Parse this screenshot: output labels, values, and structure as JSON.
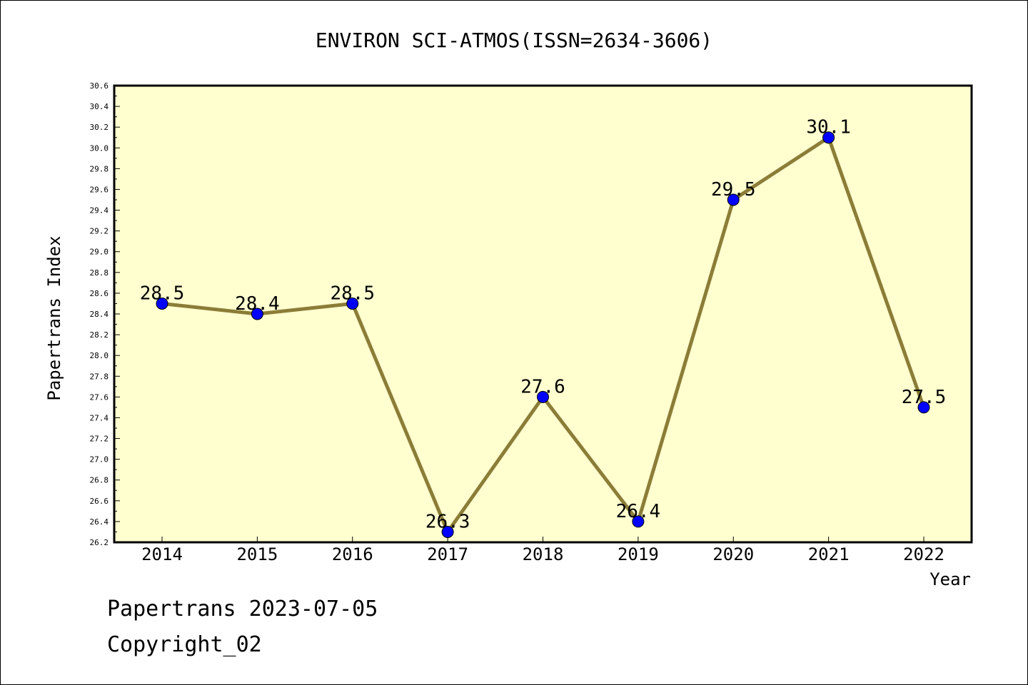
{
  "chart_data": {
    "type": "line",
    "title": "ENVIRON SCI-ATMOS(ISSN=2634-3606)",
    "xlabel": "Year",
    "ylabel": "Papertrans Index",
    "categories": [
      "2014",
      "2015",
      "2016",
      "2017",
      "2018",
      "2019",
      "2020",
      "2021",
      "2022"
    ],
    "values": [
      28.5,
      28.4,
      28.5,
      26.3,
      27.6,
      26.4,
      29.5,
      30.1,
      27.5
    ],
    "data_labels": [
      "28.5",
      "28.4",
      "28.5",
      "26.3",
      "27.6",
      "26.4",
      "29.5",
      "30.1",
      "27.5"
    ],
    "ylim": [
      26.2,
      30.6
    ],
    "yticks": [
      "26.2",
      "26.4",
      "26.6",
      "26.8",
      "27.0",
      "27.2",
      "27.4",
      "27.6",
      "27.8",
      "28.0",
      "28.2",
      "28.4",
      "28.6",
      "28.8",
      "29.0",
      "29.2",
      "29.4",
      "29.6",
      "29.8",
      "30.0",
      "30.2",
      "30.4",
      "30.6"
    ],
    "grid": false,
    "colors": {
      "plot_background": "#ffffd0",
      "line": "#8b7d37",
      "marker": "#0000ff"
    }
  },
  "footer": {
    "line1": "Papertrans 2023-07-05",
    "line2": "Copyright_02"
  }
}
